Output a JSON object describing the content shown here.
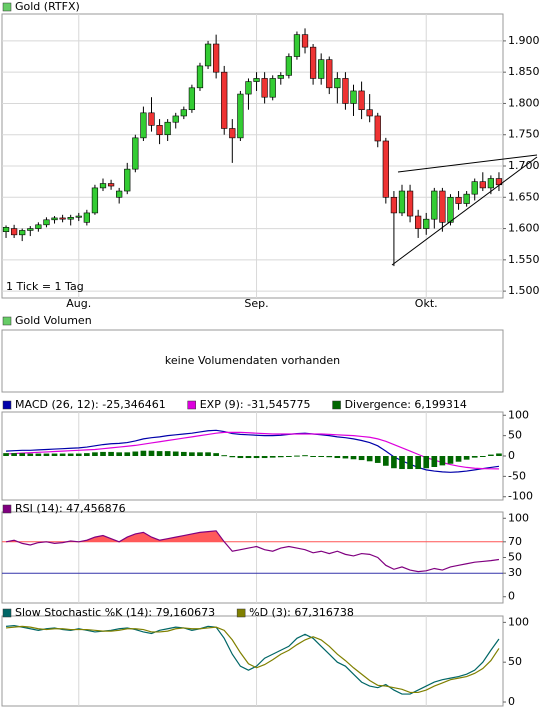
{
  "chart_data": [
    {
      "type": "candlestick",
      "title": "Gold (RTFX)",
      "color": "#66cc66",
      "up_color": "#33cc33",
      "down_color": "#ee3333",
      "annotation": "1 Tick = 1 Tag",
      "categories": [
        null,
        null,
        null,
        null,
        null,
        null,
        null,
        null,
        null,
        "Aug.",
        null,
        null,
        null,
        null,
        null,
        null,
        null,
        null,
        null,
        null,
        null,
        null,
        null,
        null,
        null,
        null,
        null,
        null,
        null,
        null,
        null,
        "Sep.",
        null,
        null,
        null,
        null,
        null,
        null,
        null,
        null,
        null,
        null,
        null,
        null,
        null,
        null,
        null,
        null,
        null,
        null,
        null,
        null,
        "Okt.",
        null,
        null,
        null,
        null,
        null,
        null,
        null,
        null,
        null
      ],
      "open": [
        1595,
        1600,
        1590,
        1597,
        1600,
        1606,
        1614,
        1617,
        1615,
        1618,
        1610,
        1625,
        1665,
        1672,
        1650,
        1660,
        1695,
        1745,
        1785,
        1765,
        1750,
        1770,
        1780,
        1790,
        1825,
        1860,
        1895,
        1850,
        1760,
        1745,
        1815,
        1835,
        1840,
        1810,
        1840,
        1845,
        1875,
        1910,
        1890,
        1840,
        1870,
        1825,
        1840,
        1800,
        1820,
        1790,
        1780,
        1740,
        1650,
        1625,
        1660,
        1620,
        1600,
        1615,
        1660,
        1610,
        1650,
        1640,
        1655,
        1675,
        1665,
        1680
      ],
      "high": [
        1605,
        1606,
        1600,
        1604,
        1610,
        1618,
        1620,
        1622,
        1622,
        1625,
        1630,
        1670,
        1680,
        1678,
        1665,
        1705,
        1750,
        1795,
        1810,
        1775,
        1775,
        1785,
        1795,
        1830,
        1865,
        1900,
        1910,
        1860,
        1775,
        1820,
        1840,
        1850,
        1850,
        1845,
        1850,
        1880,
        1915,
        1920,
        1895,
        1880,
        1875,
        1850,
        1850,
        1830,
        1835,
        1815,
        1785,
        1745,
        1660,
        1670,
        1670,
        1630,
        1625,
        1665,
        1665,
        1655,
        1660,
        1660,
        1680,
        1690,
        1685,
        1690
      ],
      "low": [
        1585,
        1585,
        1580,
        1588,
        1595,
        1602,
        1608,
        1610,
        1605,
        1612,
        1605,
        1622,
        1660,
        1662,
        1640,
        1655,
        1690,
        1740,
        1755,
        1735,
        1740,
        1760,
        1775,
        1785,
        1820,
        1855,
        1840,
        1750,
        1705,
        1740,
        1790,
        1820,
        1800,
        1805,
        1830,
        1840,
        1870,
        1880,
        1830,
        1830,
        1815,
        1800,
        1790,
        1780,
        1775,
        1770,
        1730,
        1640,
        1540,
        1620,
        1610,
        1585,
        1590,
        1600,
        1595,
        1605,
        1630,
        1635,
        1645,
        1660,
        1655,
        1660
      ],
      "close": [
        1602,
        1590,
        1597,
        1600,
        1606,
        1614,
        1617,
        1615,
        1618,
        1620,
        1625,
        1665,
        1672,
        1668,
        1660,
        1695,
        1745,
        1785,
        1765,
        1750,
        1770,
        1780,
        1790,
        1825,
        1860,
        1895,
        1850,
        1760,
        1745,
        1815,
        1835,
        1840,
        1810,
        1840,
        1845,
        1875,
        1910,
        1890,
        1840,
        1870,
        1825,
        1840,
        1800,
        1820,
        1790,
        1780,
        1740,
        1650,
        1625,
        1660,
        1620,
        1600,
        1615,
        1660,
        1610,
        1650,
        1640,
        1655,
        1675,
        1665,
        1680,
        1670
      ],
      "ylim": [
        1489,
        1943
      ],
      "yticks": [
        {
          "value": 1500,
          "label": "1.500"
        },
        {
          "value": 1550,
          "label": "1.550"
        },
        {
          "value": 1600,
          "label": "1.600"
        },
        {
          "value": 1650,
          "label": "1.650"
        },
        {
          "value": 1700,
          "label": "1.700"
        },
        {
          "value": 1750,
          "label": "1.750"
        },
        {
          "value": 1800,
          "label": "1.800"
        },
        {
          "value": 1850,
          "label": "1.850"
        },
        {
          "value": 1900,
          "label": "1.900"
        }
      ],
      "grid": true
    },
    {
      "type": "volume",
      "title": "Gold Volumen",
      "color": "#66cc66",
      "message": "keine Volumendaten vorhanden"
    },
    {
      "type": "indicator",
      "ylim": [
        -108,
        108
      ],
      "yticks": [
        -100,
        -50,
        0,
        50,
        100
      ],
      "grid": false,
      "series": [
        {
          "name": "MACD (26, 12): -25,346461",
          "color": "#0000aa",
          "style": "line",
          "values": [
            12,
            13,
            14,
            14,
            15,
            16,
            17,
            18,
            19,
            20,
            22,
            25,
            28,
            30,
            31,
            33,
            37,
            42,
            45,
            47,
            50,
            52,
            54,
            56,
            59,
            62,
            63,
            60,
            55,
            53,
            52,
            51,
            50,
            50,
            51,
            53,
            55,
            56,
            54,
            52,
            50,
            47,
            45,
            42,
            38,
            33,
            25,
            12,
            -2,
            -12,
            -20,
            -28,
            -34,
            -37,
            -39,
            -40,
            -39,
            -37,
            -34,
            -31,
            -28,
            -25.35
          ]
        },
        {
          "name": "EXP (9): -31,545775",
          "color": "#dd00dd",
          "style": "line",
          "values": [
            5,
            6,
            7,
            8,
            9,
            10,
            11,
            12,
            13,
            14,
            15,
            16,
            18,
            20,
            22,
            24,
            26,
            29,
            32,
            35,
            38,
            41,
            44,
            47,
            50,
            53,
            56,
            58,
            58,
            58,
            57,
            56,
            55,
            54,
            54,
            54,
            54,
            54,
            54,
            54,
            53,
            52,
            51,
            50,
            48,
            46,
            42,
            36,
            28,
            20,
            12,
            4,
            -4,
            -10,
            -16,
            -21,
            -25,
            -28,
            -30,
            -31,
            -31.5,
            -31.55
          ]
        },
        {
          "name": "Divergence: 6,199314",
          "color": "#006600",
          "style": "bar",
          "values": [
            7,
            7,
            7,
            6,
            6,
            6,
            6,
            6,
            6,
            6,
            7,
            9,
            10,
            10,
            9,
            9,
            11,
            13,
            13,
            12,
            12,
            11,
            10,
            9,
            9,
            9,
            7,
            2,
            -3,
            -5,
            -5,
            -5,
            -5,
            -4,
            -3,
            -1,
            1,
            2,
            0,
            -2,
            -3,
            -5,
            -6,
            -8,
            -10,
            -13,
            -17,
            -24,
            -30,
            -32,
            -32,
            -32,
            -30,
            -27,
            -23,
            -19,
            -14,
            -9,
            -4,
            0,
            3.5,
            6.2
          ]
        }
      ]
    },
    {
      "type": "indicator",
      "ylim": [
        -8,
        108
      ],
      "yticks": [
        0,
        30,
        50,
        70,
        100
      ],
      "grid": false,
      "reference_lines": [
        {
          "value": 70,
          "color": "#ff5555"
        },
        {
          "value": 30,
          "color": "#3333aa"
        }
      ],
      "series": [
        {
          "name": "RSI (14): 47,456876",
          "color": "#800080",
          "style": "line",
          "fill_above": 70,
          "fill_color": "#ff5a5a",
          "values": [
            70,
            72,
            68,
            66,
            69,
            70,
            68,
            69,
            71,
            70,
            72,
            76,
            78,
            74,
            70,
            76,
            80,
            82,
            76,
            72,
            74,
            76,
            78,
            80,
            82,
            83,
            84,
            70,
            58,
            60,
            62,
            64,
            60,
            58,
            62,
            64,
            62,
            60,
            56,
            58,
            55,
            58,
            54,
            52,
            55,
            54,
            50,
            40,
            35,
            38,
            34,
            32,
            33,
            36,
            34,
            38,
            40,
            42,
            44,
            45,
            46,
            47.46
          ]
        }
      ]
    },
    {
      "type": "indicator",
      "ylim": [
        -5,
        108
      ],
      "yticks": [
        0,
        50,
        100
      ],
      "grid": false,
      "series": [
        {
          "name": "Slow Stochastic %K (14): 79,160673",
          "color": "#006666",
          "style": "line",
          "values": [
            95,
            96,
            94,
            92,
            90,
            92,
            93,
            91,
            90,
            92,
            90,
            88,
            89,
            90,
            92,
            93,
            91,
            88,
            86,
            90,
            92,
            94,
            93,
            90,
            92,
            95,
            94,
            80,
            60,
            45,
            40,
            45,
            55,
            60,
            65,
            70,
            80,
            85,
            80,
            70,
            60,
            50,
            45,
            35,
            25,
            20,
            18,
            22,
            15,
            10,
            10,
            15,
            20,
            25,
            28,
            30,
            32,
            35,
            40,
            50,
            65,
            79.16
          ]
        },
        {
          "name": "%D (3): 67,316738",
          "color": "#808000",
          "style": "line",
          "values": [
            93,
            94,
            95,
            94,
            92,
            91,
            92,
            92,
            91,
            91,
            91,
            90,
            89,
            89,
            90,
            92,
            92,
            91,
            88,
            88,
            89,
            92,
            93,
            92,
            92,
            93,
            94,
            90,
            78,
            62,
            48,
            43,
            47,
            53,
            60,
            65,
            72,
            78,
            82,
            78,
            70,
            60,
            52,
            43,
            35,
            27,
            21,
            20,
            18,
            16,
            12,
            12,
            15,
            20,
            24,
            28,
            30,
            32,
            36,
            42,
            52,
            67.32
          ]
        }
      ]
    }
  ]
}
